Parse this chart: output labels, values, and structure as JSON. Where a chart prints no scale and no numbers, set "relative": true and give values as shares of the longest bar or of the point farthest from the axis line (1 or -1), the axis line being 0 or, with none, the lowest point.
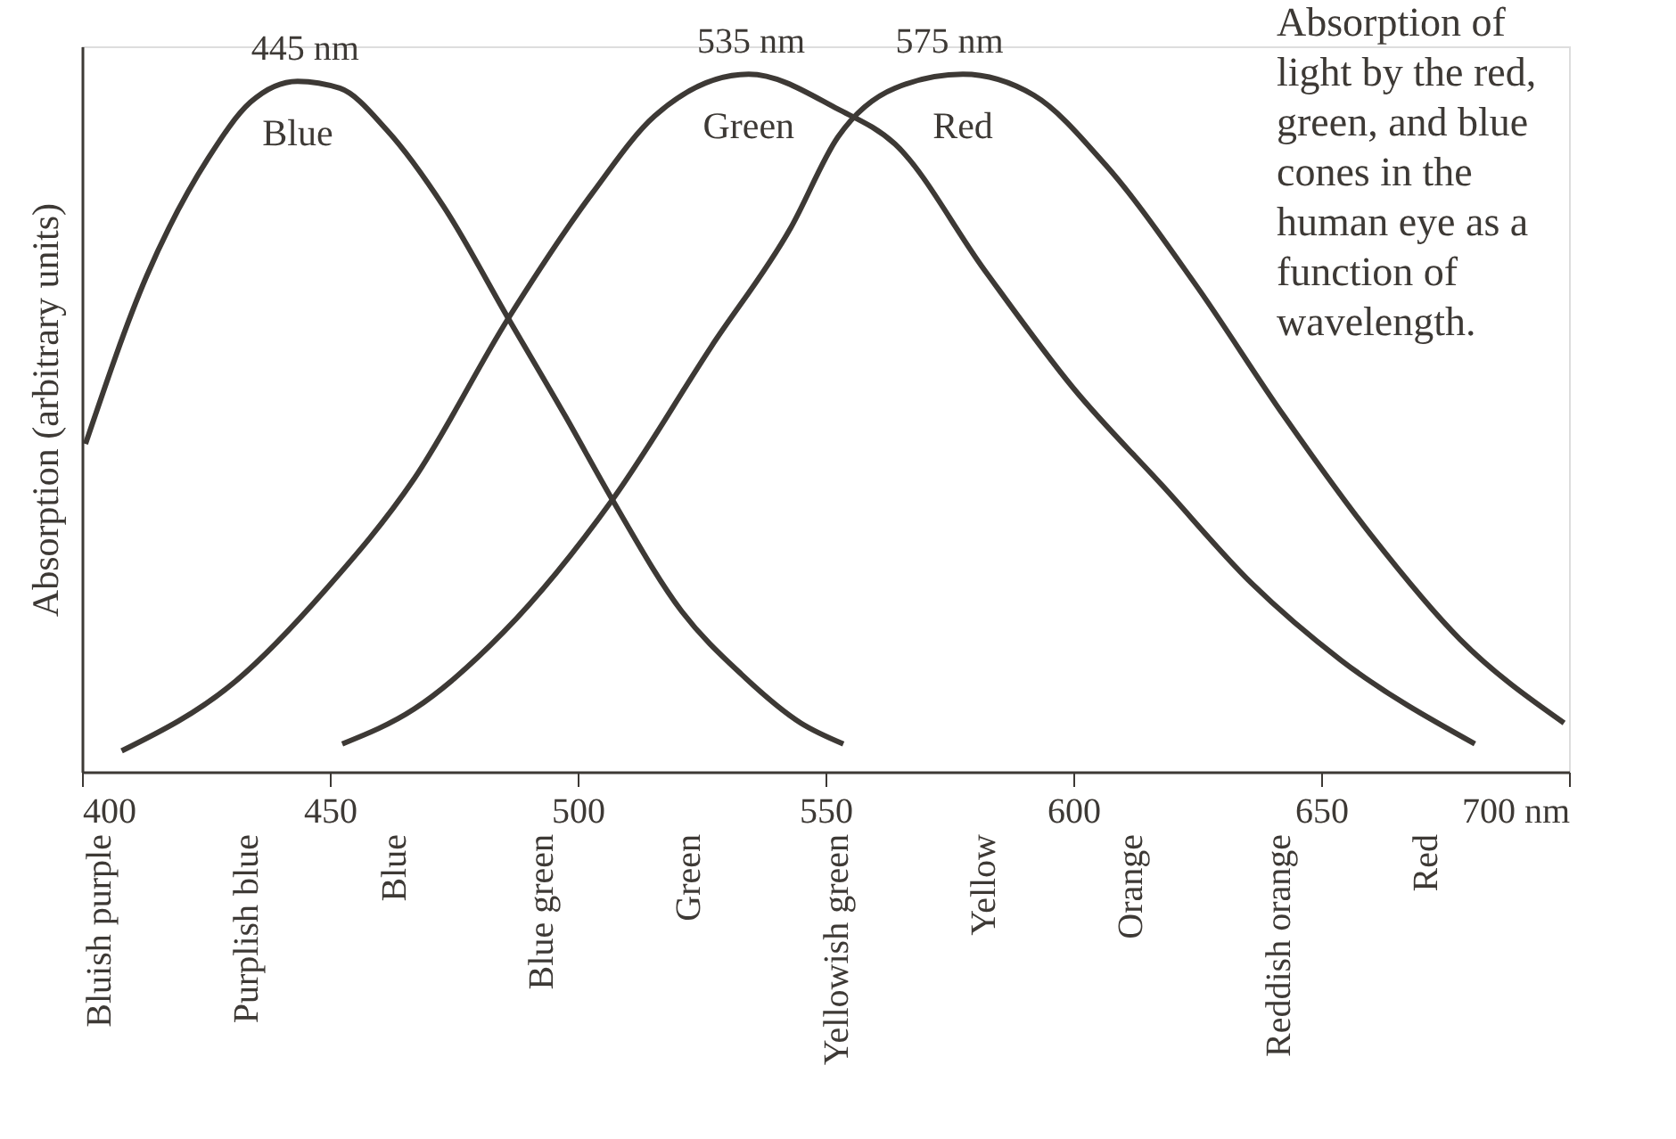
{
  "chart_data": {
    "type": "line",
    "relative": true,
    "ylabel": "Absorption (arbitrary units)",
    "xlim": [
      400,
      700
    ],
    "xticks": [
      400,
      450,
      500,
      550,
      600,
      650,
      {
        "value": 700,
        "label": "700 nm"
      }
    ],
    "grid": false,
    "marker": "none",
    "line_style": "solid",
    "series": [
      {
        "name": "Blue",
        "color": "#3d3935",
        "x": [
          400.7,
          413,
          425.5,
          434,
          443.5,
          452,
          461.5,
          473,
          486,
          497.5,
          507,
          521,
          533,
          545,
          553.6
        ],
        "values": [
          0.47,
          0.71,
          0.88,
          0.96,
          0.99,
          0.98,
          0.92,
          0.81,
          0.65,
          0.51,
          0.39,
          0.23,
          0.14,
          0.07,
          0.04
        ]
      },
      {
        "name": "Green",
        "color": "#3d3935",
        "x": [
          408,
          431,
          449,
          467,
          486,
          503,
          515.5,
          534.5,
          552.5,
          564,
          582,
          600,
          618,
          636,
          654,
          681
        ],
        "values": [
          0.03,
          0.13,
          0.26,
          0.42,
          0.65,
          0.83,
          0.94,
          1.0,
          0.95,
          0.9,
          0.72,
          0.55,
          0.41,
          0.27,
          0.16,
          0.04
        ]
      },
      {
        "name": "Red",
        "color": "#3d3935",
        "x": [
          452.5,
          467,
          485,
          507,
          527,
          543,
          552.5,
          564,
          577.7,
          592,
          606.5,
          624.5,
          642.5,
          660,
          678,
          699
        ],
        "values": [
          0.04,
          0.09,
          0.2,
          0.39,
          0.61,
          0.78,
          0.91,
          0.98,
          1.0,
          0.97,
          0.87,
          0.7,
          0.51,
          0.34,
          0.19,
          0.07
        ]
      }
    ],
    "annotations": [
      {
        "text": "445 nm",
        "x": 445,
        "y": 0.99
      },
      {
        "text": "535 nm",
        "x": 535,
        "y": 1.0
      },
      {
        "text": "575 nm",
        "x": 575,
        "y": 1.0
      },
      "Bluish purple",
      "Purplish blue",
      "Blue",
      "Blue green",
      "Green",
      "Yellowish green",
      "Yellow",
      "Orange",
      "Reddish orange",
      "Red",
      "Absorption of light by the red, green, and blue cones in the human eye as a function of wavelength."
    ]
  }
}
